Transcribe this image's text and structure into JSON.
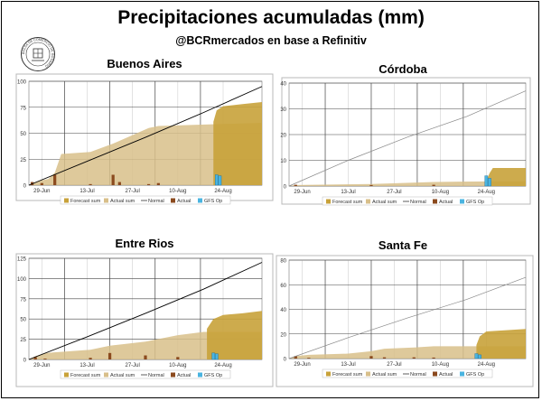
{
  "page": {
    "title": "Precipitaciones acumuladas (mm)",
    "subtitle": "@BCRmercados en base a Refinitiv",
    "logo_text": "BOLSA DE COMERCIO DE ROSARIO"
  },
  "legend": {
    "forecast_sum": "Forecast sum",
    "actual_sum": "Actual sum",
    "normal": "Normal",
    "actual": "Actual",
    "gfs_op": "GFS Op"
  },
  "colors": {
    "forecast_sum": "#c8a23a",
    "actual_sum": "#d8bf8a",
    "normal": "#000000",
    "actual": "#8b4a1e",
    "gfs_op": "#4ab4e0"
  },
  "chart_data": [
    {
      "type": "area",
      "title": "Buenos Aires",
      "x_ticks": [
        "29-Jun",
        "13-Jul",
        "27-Jul",
        "10-Aug",
        "24-Aug"
      ],
      "x_tick_days": [
        4,
        18,
        32,
        46,
        60
      ],
      "x_range": [
        0,
        72
      ],
      "ylim": [
        0,
        100
      ],
      "y_ticks": [
        0,
        25,
        50,
        75,
        100
      ],
      "normal": [
        [
          0,
          0
        ],
        [
          18,
          23
        ],
        [
          36,
          46
        ],
        [
          54,
          70
        ],
        [
          72,
          95
        ]
      ],
      "actual_sum": [
        [
          0,
          0
        ],
        [
          1,
          2
        ],
        [
          3,
          4
        ],
        [
          6,
          6
        ],
        [
          8,
          12
        ],
        [
          10,
          30
        ],
        [
          19,
          32
        ],
        [
          26,
          40
        ],
        [
          37,
          55
        ],
        [
          40,
          57
        ],
        [
          72,
          60
        ]
      ],
      "forecast_sum": [
        [
          57,
          61
        ],
        [
          58,
          72
        ],
        [
          60,
          76
        ],
        [
          66,
          78
        ],
        [
          72,
          80
        ]
      ],
      "actual": [
        [
          1,
          3
        ],
        [
          4,
          2
        ],
        [
          8,
          10
        ],
        [
          19,
          1
        ],
        [
          26,
          10
        ],
        [
          28,
          3
        ],
        [
          37,
          1
        ],
        [
          40,
          2
        ]
      ],
      "gfs_op": [
        [
          58,
          10
        ],
        [
          59,
          9
        ]
      ],
      "normal_color_key": "normal"
    },
    {
      "type": "area",
      "title": "Córdoba",
      "x_ticks": [
        "29-Jun",
        "13-Jul",
        "27-Jul",
        "10-Aug",
        "24-Aug"
      ],
      "x_tick_days": [
        4,
        18,
        32,
        46,
        60
      ],
      "x_range": [
        0,
        72
      ],
      "ylim": [
        0,
        40
      ],
      "y_ticks": [
        0,
        10,
        20,
        30,
        40
      ],
      "normal": [
        [
          0,
          0
        ],
        [
          18,
          10
        ],
        [
          36,
          19
        ],
        [
          54,
          27
        ],
        [
          72,
          37
        ]
      ],
      "actual_sum": [
        [
          0,
          0
        ],
        [
          2,
          0.4
        ],
        [
          25,
          0.8
        ],
        [
          44,
          1.6
        ],
        [
          60,
          1.8
        ],
        [
          72,
          1.8
        ]
      ],
      "forecast_sum": [
        [
          60,
          2
        ],
        [
          61,
          5
        ],
        [
          62,
          7
        ],
        [
          72,
          7
        ]
      ],
      "actual": [
        [
          2,
          0.5
        ],
        [
          25,
          0.4
        ],
        [
          44,
          0.5
        ]
      ],
      "gfs_op": [
        [
          60,
          4
        ],
        [
          61,
          3
        ]
      ],
      "normal_color_key": "normal_light"
    },
    {
      "type": "area",
      "title": "Entre Rios",
      "x_ticks": [
        "29-Jun",
        "13-Jul",
        "27-Jul",
        "10-Aug",
        "24-Aug"
      ],
      "x_tick_days": [
        4,
        18,
        32,
        46,
        60
      ],
      "x_range": [
        0,
        72
      ],
      "ylim": [
        0,
        125
      ],
      "y_ticks": [
        0,
        25,
        50,
        75,
        100,
        125
      ],
      "normal": [
        [
          0,
          0
        ],
        [
          18,
          28
        ],
        [
          36,
          57
        ],
        [
          54,
          87
        ],
        [
          72,
          120
        ]
      ],
      "actual_sum": [
        [
          0,
          0
        ],
        [
          2,
          4
        ],
        [
          5,
          8
        ],
        [
          19,
          12
        ],
        [
          25,
          17
        ],
        [
          36,
          22
        ],
        [
          46,
          30
        ],
        [
          54,
          34
        ],
        [
          72,
          34
        ]
      ],
      "forecast_sum": [
        [
          55,
          38
        ],
        [
          57,
          50
        ],
        [
          60,
          55
        ],
        [
          66,
          57
        ],
        [
          72,
          60
        ]
      ],
      "actual": [
        [
          2,
          3
        ],
        [
          5,
          1
        ],
        [
          19,
          2
        ],
        [
          25,
          8
        ],
        [
          36,
          5
        ],
        [
          46,
          3
        ]
      ],
      "gfs_op": [
        [
          57,
          8
        ],
        [
          58,
          7
        ]
      ],
      "normal_color_key": "normal"
    },
    {
      "type": "area",
      "title": "Santa Fe",
      "x_ticks": [
        "29-Jun",
        "13-Jul",
        "27-Jul",
        "10-Aug",
        "24-Aug"
      ],
      "x_tick_days": [
        4,
        18,
        32,
        46,
        60
      ],
      "x_range": [
        0,
        72
      ],
      "ylim": [
        0,
        80
      ],
      "y_ticks": [
        0,
        20,
        40,
        60,
        80
      ],
      "normal": [
        [
          0,
          0
        ],
        [
          18,
          17
        ],
        [
          36,
          33
        ],
        [
          54,
          48
        ],
        [
          72,
          66
        ]
      ],
      "actual_sum": [
        [
          0,
          0
        ],
        [
          2,
          2
        ],
        [
          6,
          3
        ],
        [
          18,
          4
        ],
        [
          25,
          6
        ],
        [
          29,
          8
        ],
        [
          38,
          9
        ],
        [
          44,
          10
        ],
        [
          72,
          10
        ]
      ],
      "forecast_sum": [
        [
          57,
          11
        ],
        [
          58,
          18
        ],
        [
          60,
          22
        ],
        [
          66,
          23
        ],
        [
          72,
          24
        ]
      ],
      "actual": [
        [
          2,
          2
        ],
        [
          6,
          0.6
        ],
        [
          25,
          2
        ],
        [
          29,
          1
        ],
        [
          38,
          1
        ],
        [
          44,
          0.8
        ]
      ],
      "gfs_op": [
        [
          57,
          4
        ],
        [
          58,
          3
        ]
      ],
      "normal_color_key": "normal_light"
    }
  ]
}
